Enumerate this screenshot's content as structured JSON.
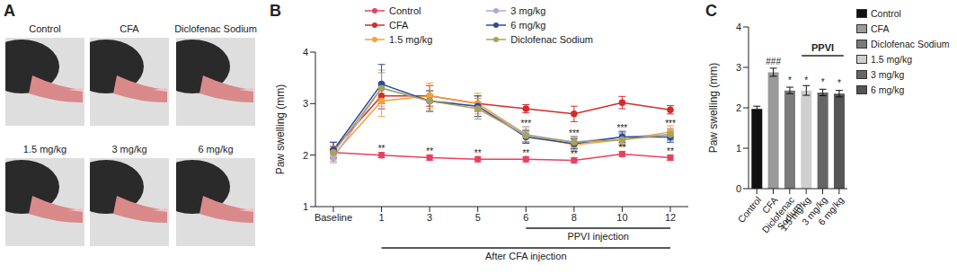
{
  "photos": {
    "panel": "A",
    "labels": [
      "Control",
      "CFA",
      "Diclofenac Sodium",
      "1.5 mg/kg",
      "3 mg/kg",
      "6 mg/kg"
    ]
  },
  "chart_data": [
    {
      "panel": "B",
      "type": "line",
      "y_label": "Paw swelling (mm)",
      "categories": [
        "Baseline",
        "1",
        "3",
        "5",
        "6",
        "8",
        "10",
        "12"
      ],
      "ylim": [
        1,
        4
      ],
      "yticks": [
        1,
        2,
        3,
        4
      ],
      "legend": "top",
      "series": [
        {
          "name": "Control",
          "color": "#e8415f",
          "marker": "circle",
          "values": [
            2.05,
            2.0,
            1.95,
            1.92,
            1.92,
            1.9,
            2.02,
            1.95
          ],
          "errors": [
            0.12,
            0.05,
            0.05,
            0.05,
            0.05,
            0.05,
            0.05,
            0.05
          ]
        },
        {
          "name": "CFA",
          "color": "#d42b2b",
          "marker": "circle",
          "values": [
            2.1,
            3.15,
            3.15,
            3.0,
            2.9,
            2.8,
            3.02,
            2.88
          ],
          "errors": [
            0.15,
            0.25,
            0.2,
            0.15,
            0.08,
            0.15,
            0.12,
            0.08
          ]
        },
        {
          "name": "1.5 mg/kg",
          "color": "#f2a23a",
          "marker": "circle",
          "values": [
            2.0,
            3.05,
            3.15,
            3.0,
            2.4,
            2.2,
            2.3,
            2.45
          ],
          "errors": [
            0.12,
            0.3,
            0.25,
            0.2,
            0.15,
            0.12,
            0.12,
            0.12
          ]
        },
        {
          "name": "3 mg/kg",
          "color": "#b4a8d2",
          "marker": "circle",
          "values": [
            1.95,
            3.3,
            3.05,
            2.95,
            2.4,
            2.25,
            2.35,
            2.4
          ],
          "errors": [
            0.1,
            0.35,
            0.2,
            0.2,
            0.15,
            0.12,
            0.12,
            0.12
          ]
        },
        {
          "name": "6 mg/kg",
          "color": "#2b4c9c",
          "marker": "circle",
          "values": [
            2.1,
            3.38,
            3.05,
            2.95,
            2.35,
            2.22,
            2.35,
            2.35
          ],
          "errors": [
            0.15,
            0.38,
            0.2,
            0.2,
            0.12,
            0.1,
            0.1,
            0.1
          ]
        },
        {
          "name": "Diclofenac Sodium",
          "color": "#a8a35a",
          "marker": "circle",
          "values": [
            2.05,
            3.3,
            3.05,
            2.9,
            2.38,
            2.25,
            2.3,
            2.4
          ],
          "errors": [
            0.12,
            0.3,
            0.2,
            0.2,
            0.12,
            0.1,
            0.1,
            0.1
          ]
        }
      ],
      "annotations": [
        {
          "x": "1",
          "y": 2.12,
          "text": "**"
        },
        {
          "x": "3",
          "y": 2.07,
          "text": "**"
        },
        {
          "x": "5",
          "y": 2.04,
          "text": "**"
        },
        {
          "x": "6",
          "y": 2.04,
          "text": "**"
        },
        {
          "x": "8",
          "y": 2.02,
          "text": "**"
        },
        {
          "x": "10",
          "y": 2.14,
          "text": "**"
        },
        {
          "x": "12",
          "y": 2.07,
          "text": "**"
        },
        {
          "x": "6",
          "y": 2.62,
          "text": "***"
        },
        {
          "x": "8",
          "y": 2.42,
          "text": "***"
        },
        {
          "x": "10",
          "y": 2.52,
          "text": "***"
        },
        {
          "x": "12",
          "y": 2.62,
          "text": "***"
        }
      ],
      "brackets": [
        {
          "text": "PPVI injection",
          "from": "6",
          "to": "12"
        },
        {
          "text": "After CFA injection",
          "from": "1",
          "to": "12"
        }
      ]
    },
    {
      "panel": "C",
      "type": "bar",
      "y_label": "Paw swelling (mm)",
      "categories": [
        "Control",
        "CFA",
        "Diclofenac Sodium",
        "1.5 mg/kg",
        "3 mg/kg",
        "6 mg/kg"
      ],
      "values": [
        1.97,
        2.88,
        2.43,
        2.43,
        2.38,
        2.35
      ],
      "errors": [
        0.07,
        0.1,
        0.08,
        0.12,
        0.08,
        0.08
      ],
      "colors": [
        "#111111",
        "#9a9a9a",
        "#7a7a7a",
        "#cfcfcf",
        "#666666",
        "#555555"
      ],
      "ylim": [
        0,
        4
      ],
      "yticks": [
        0,
        1,
        2,
        3,
        4
      ],
      "legend": "right",
      "annotations": [
        {
          "category": "CFA",
          "text": "###"
        },
        {
          "category": "Diclofenac Sodium",
          "text": "*"
        },
        {
          "category": "1.5 mg/kg",
          "text": "*"
        },
        {
          "category": "3 mg/kg",
          "text": "*"
        },
        {
          "category": "6 mg/kg",
          "text": "*"
        }
      ],
      "brackets": [
        {
          "text": "PPVI",
          "from": "1.5 mg/kg",
          "to": "6 mg/kg"
        }
      ]
    }
  ]
}
